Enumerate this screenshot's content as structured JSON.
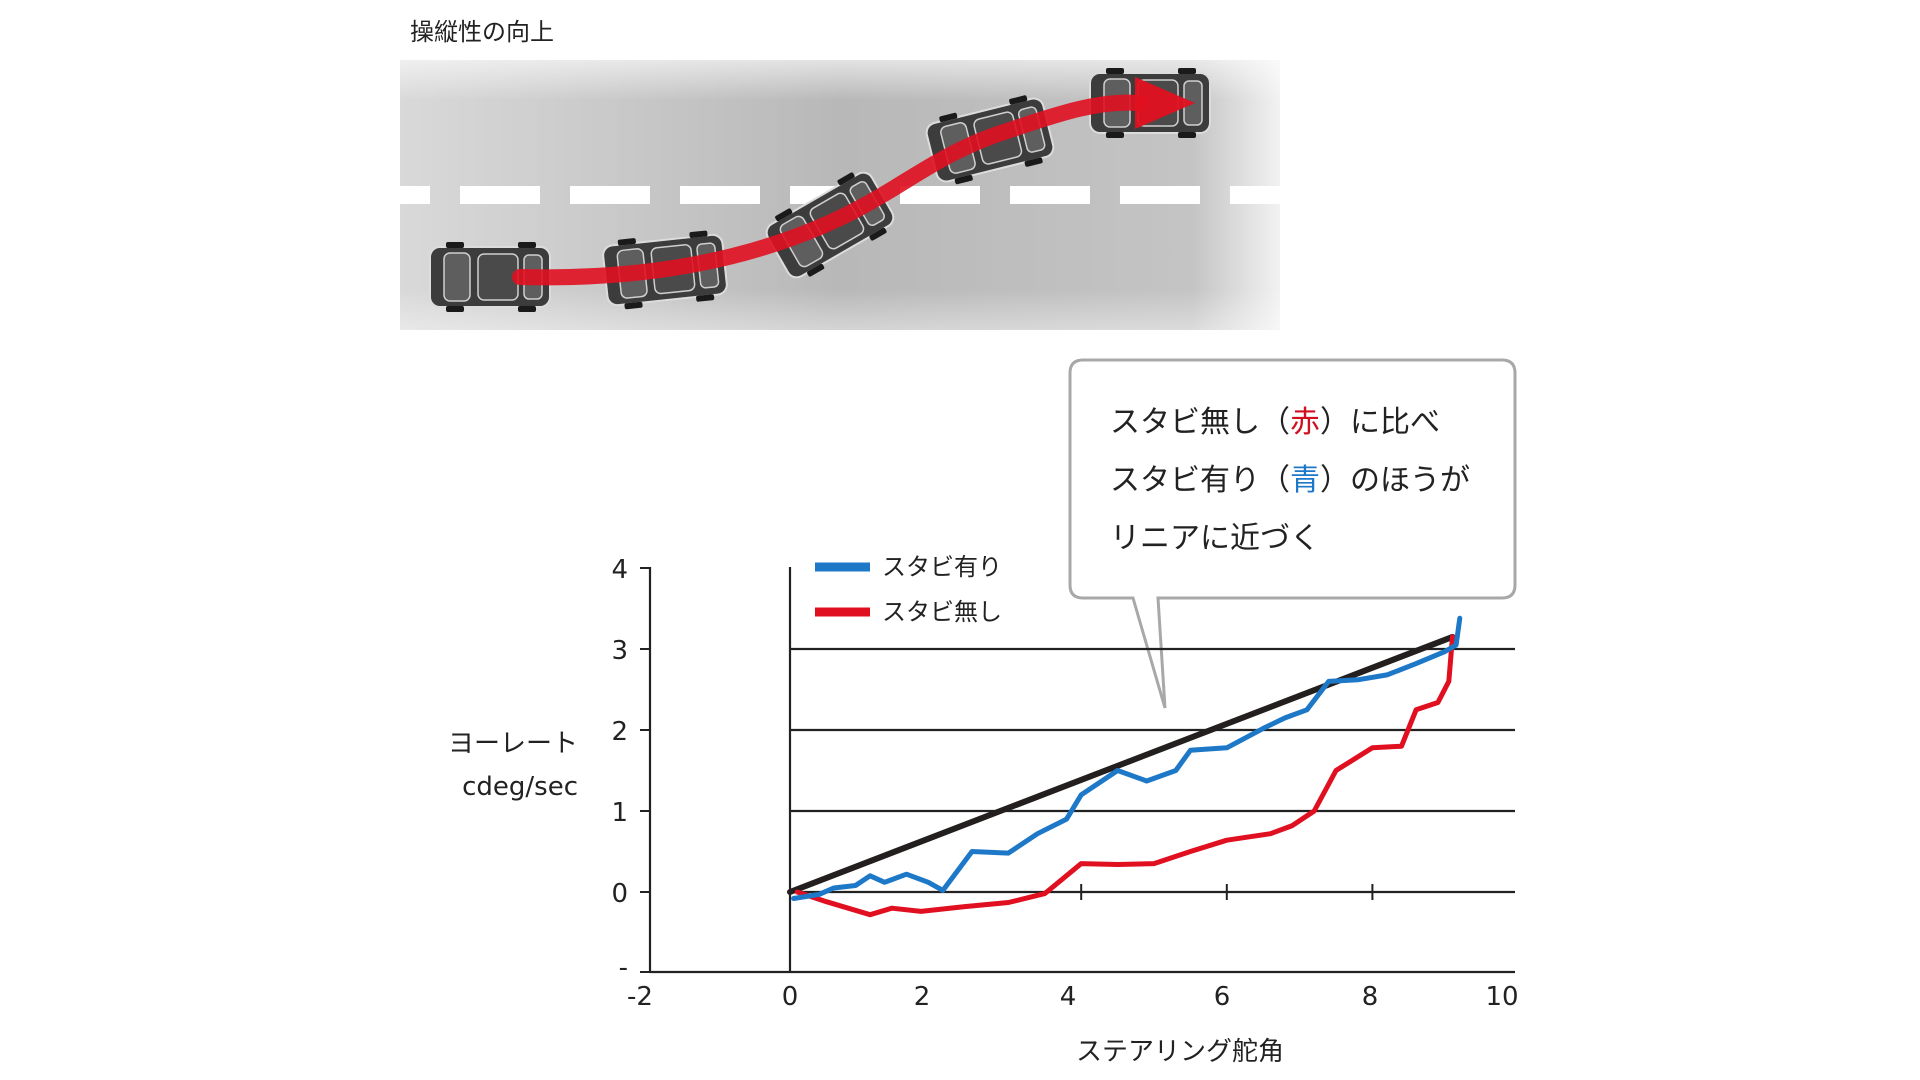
{
  "top_title": "操縦性の向上",
  "callout": {
    "line1_a": "スタビ無し（",
    "line1_b": "赤",
    "line1_c": "）に比べ",
    "line2_a": "スタビ有り（",
    "line2_b": "青",
    "line2_c": "）のほうが",
    "line3": "リニアに近づく",
    "red": "#d01020",
    "blue": "#1e78c8"
  },
  "colors": {
    "with_stabi": "#1e78c8",
    "without_stabi": "#e01020",
    "linear": "#231f1e",
    "road": "#bdbdbd"
  },
  "chart_data": {
    "type": "line",
    "xlabel": "ステアリング舵角",
    "ylabel_line1": "ヨーレート",
    "ylabel_line2": "cdeg/sec",
    "xlim": [
      -2,
      10
    ],
    "ylim": [
      -1,
      4
    ],
    "x_ticks": [
      -2,
      0,
      2,
      4,
      6,
      8,
      10
    ],
    "x_tick_labels": [
      "-2",
      "0",
      "2",
      "4",
      "6",
      "8",
      "10"
    ],
    "y_ticks": [
      0,
      1,
      2,
      3,
      4
    ],
    "y_tick_labels": [
      "0",
      "1",
      "2",
      "3",
      "4"
    ],
    "y_bottom_label": "-",
    "grid": "horizontal",
    "legend_position": "top-left",
    "series": [
      {
        "name": "スタビ有り",
        "color": "#1e78c8",
        "points": [
          [
            0.05,
            -0.08
          ],
          [
            0.4,
            -0.03
          ],
          [
            0.6,
            0.05
          ],
          [
            0.9,
            0.08
          ],
          [
            1.1,
            0.2
          ],
          [
            1.3,
            0.12
          ],
          [
            1.6,
            0.22
          ],
          [
            1.9,
            0.12
          ],
          [
            2.1,
            0.02
          ],
          [
            2.5,
            0.5
          ],
          [
            3.0,
            0.48
          ],
          [
            3.4,
            0.72
          ],
          [
            3.8,
            0.9
          ],
          [
            4.0,
            1.2
          ],
          [
            4.5,
            1.5
          ],
          [
            4.9,
            1.37
          ],
          [
            5.3,
            1.5
          ],
          [
            5.5,
            1.75
          ],
          [
            6.0,
            1.78
          ],
          [
            6.5,
            2.02
          ],
          [
            6.8,
            2.15
          ],
          [
            7.1,
            2.25
          ],
          [
            7.4,
            2.6
          ],
          [
            7.8,
            2.62
          ],
          [
            8.2,
            2.68
          ],
          [
            8.6,
            2.82
          ],
          [
            9.0,
            2.97
          ],
          [
            9.15,
            3.05
          ],
          [
            9.2,
            3.38
          ]
        ]
      },
      {
        "name": "スタビ無し",
        "color": "#e01020",
        "points": [
          [
            0.1,
            0.0
          ],
          [
            0.5,
            -0.12
          ],
          [
            1.1,
            -0.28
          ],
          [
            1.4,
            -0.2
          ],
          [
            1.8,
            -0.24
          ],
          [
            2.4,
            -0.18
          ],
          [
            3.0,
            -0.13
          ],
          [
            3.5,
            -0.02
          ],
          [
            4.0,
            0.35
          ],
          [
            4.5,
            0.34
          ],
          [
            5.0,
            0.35
          ],
          [
            5.5,
            0.5
          ],
          [
            6.0,
            0.64
          ],
          [
            6.6,
            0.72
          ],
          [
            6.9,
            0.82
          ],
          [
            7.2,
            1.0
          ],
          [
            7.5,
            1.5
          ],
          [
            8.0,
            1.78
          ],
          [
            8.4,
            1.8
          ],
          [
            8.6,
            2.25
          ],
          [
            8.9,
            2.34
          ],
          [
            9.05,
            2.6
          ],
          [
            9.1,
            3.15
          ]
        ]
      },
      {
        "name": "",
        "color": "#231f1e",
        "points": [
          [
            0.0,
            0.0
          ],
          [
            9.1,
            3.15
          ]
        ]
      }
    ]
  }
}
